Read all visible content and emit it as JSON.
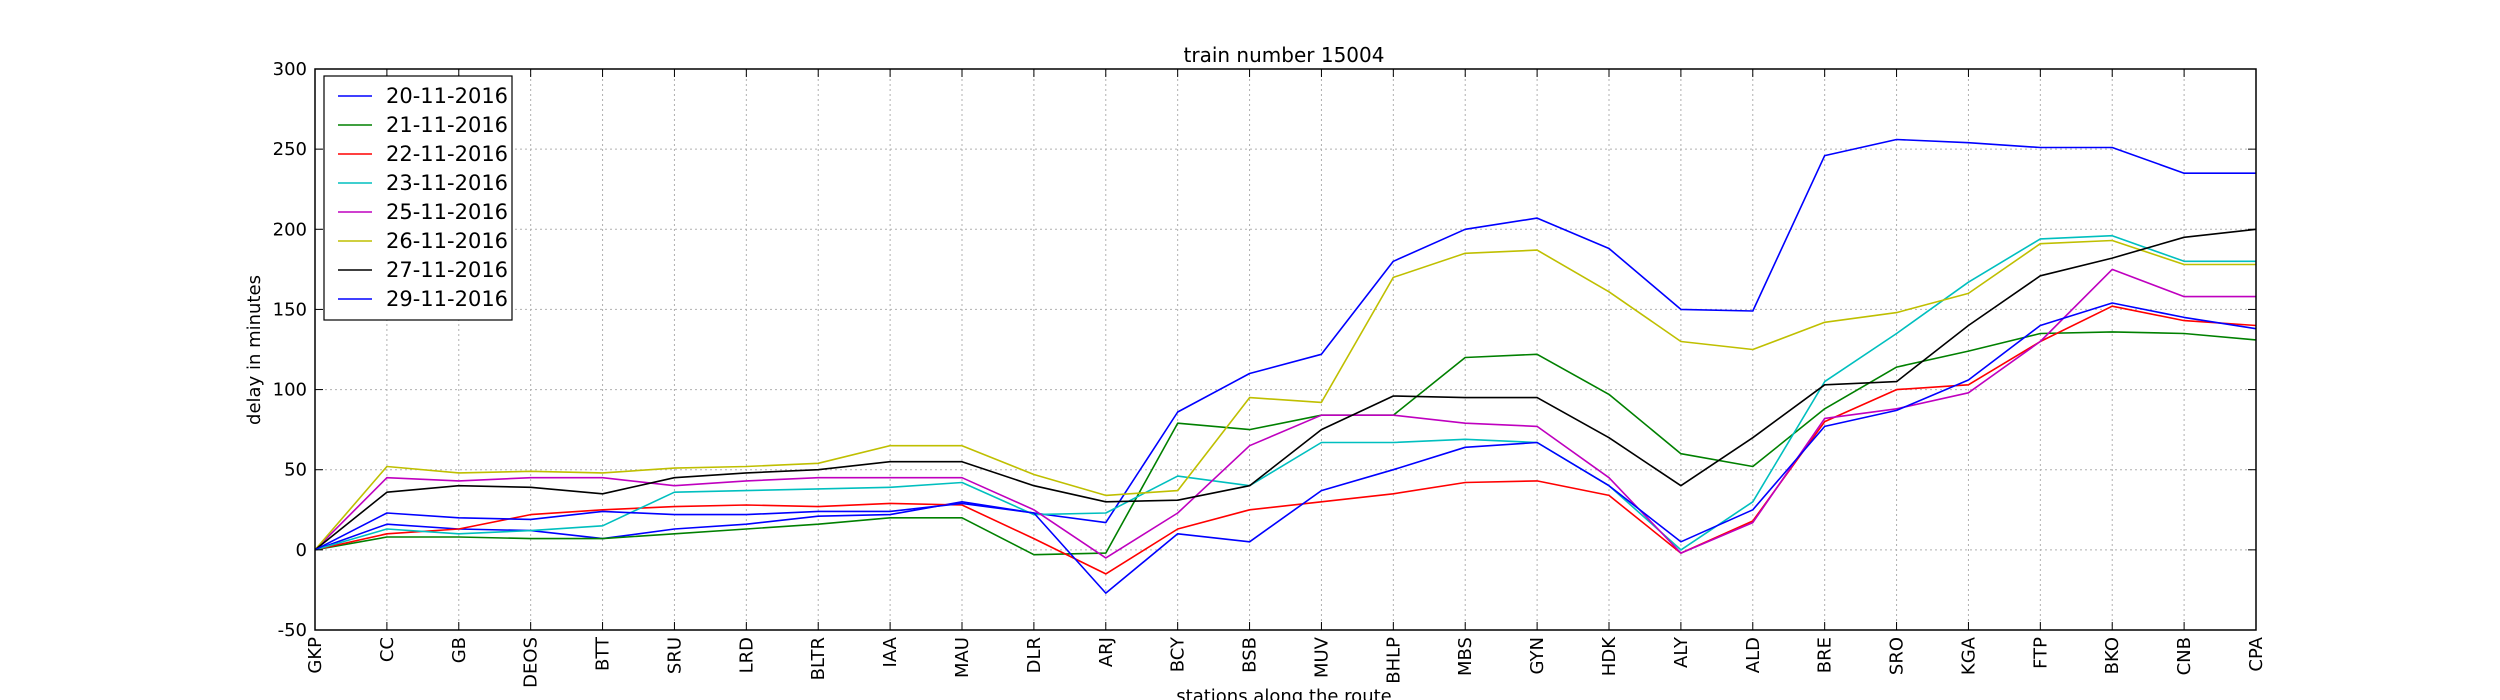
{
  "chart_data": {
    "type": "line",
    "title": "train number 15004",
    "xlabel": "stations along the route",
    "ylabel": "delay in minutes",
    "ylim": [
      -50,
      300
    ],
    "yticks": [
      -50,
      0,
      50,
      100,
      150,
      200,
      250,
      300
    ],
    "grid": true,
    "legend_position": "top-left",
    "categories": [
      "GKP",
      "CC",
      "GB",
      "DEOS",
      "BTT",
      "SRU",
      "LRD",
      "BLTR",
      "IAA",
      "MAU",
      "DLR",
      "ARJ",
      "BCY",
      "BSB",
      "MUV",
      "BHLP",
      "MBS",
      "GYN",
      "HDK",
      "ALY",
      "ALD",
      "BRE",
      "SRO",
      "KGA",
      "FTP",
      "BKO",
      "CNB",
      "CPA"
    ],
    "series": [
      {
        "name": "20-11-2016",
        "color": "#0000ff",
        "values": [
          0,
          16,
          13,
          12,
          7,
          13,
          16,
          21,
          22,
          30,
          23,
          17,
          86,
          110,
          122,
          180,
          200,
          207,
          188,
          150,
          149,
          246,
          256,
          254,
          251,
          251,
          235,
          235
        ]
      },
      {
        "name": "21-11-2016",
        "color": "#008000",
        "values": [
          0,
          8,
          8,
          7,
          7,
          10,
          13,
          16,
          20,
          20,
          -3,
          -2,
          79,
          75,
          84,
          84,
          120,
          122,
          97,
          60,
          52,
          88,
          114,
          124,
          135,
          136,
          135,
          131
        ]
      },
      {
        "name": "22-11-2016",
        "color": "#ff0000",
        "values": [
          0,
          10,
          13,
          22,
          25,
          27,
          28,
          27,
          29,
          28,
          7,
          -15,
          13,
          25,
          30,
          35,
          42,
          43,
          34,
          -2,
          18,
          80,
          100,
          103,
          130,
          152,
          143,
          140
        ]
      },
      {
        "name": "23-11-2016",
        "color": "#00bfbf",
        "values": [
          0,
          13,
          10,
          12,
          15,
          36,
          37,
          38,
          39,
          42,
          22,
          23,
          46,
          40,
          67,
          67,
          69,
          67,
          40,
          0,
          30,
          105,
          135,
          167,
          194,
          196,
          180,
          180
        ]
      },
      {
        "name": "25-11-2016",
        "color": "#bf00bf",
        "values": [
          0,
          45,
          43,
          45,
          45,
          40,
          43,
          45,
          45,
          45,
          25,
          -5,
          23,
          65,
          84,
          84,
          79,
          77,
          45,
          -2,
          17,
          82,
          88,
          98,
          130,
          175,
          158,
          158
        ]
      },
      {
        "name": "26-11-2016",
        "color": "#bfbf00",
        "values": [
          0,
          52,
          48,
          49,
          48,
          51,
          52,
          54,
          65,
          65,
          47,
          34,
          37,
          95,
          92,
          170,
          185,
          187,
          161,
          130,
          125,
          142,
          148,
          160,
          191,
          193,
          178,
          178
        ]
      },
      {
        "name": "27-11-2016",
        "color": "#000000",
        "values": [
          0,
          36,
          40,
          39,
          35,
          45,
          48,
          50,
          55,
          55,
          40,
          30,
          31,
          40,
          75,
          96,
          95,
          95,
          70,
          40,
          70,
          103,
          105,
          140,
          171,
          182,
          195,
          200
        ]
      },
      {
        "name": "29-11-2016",
        "color": "#0000ff",
        "values": [
          0,
          23,
          20,
          19,
          24,
          22,
          22,
          24,
          24,
          29,
          23,
          -27,
          10,
          5,
          37,
          50,
          64,
          67,
          40,
          5,
          25,
          77,
          87,
          106,
          140,
          154,
          145,
          138
        ]
      }
    ]
  }
}
